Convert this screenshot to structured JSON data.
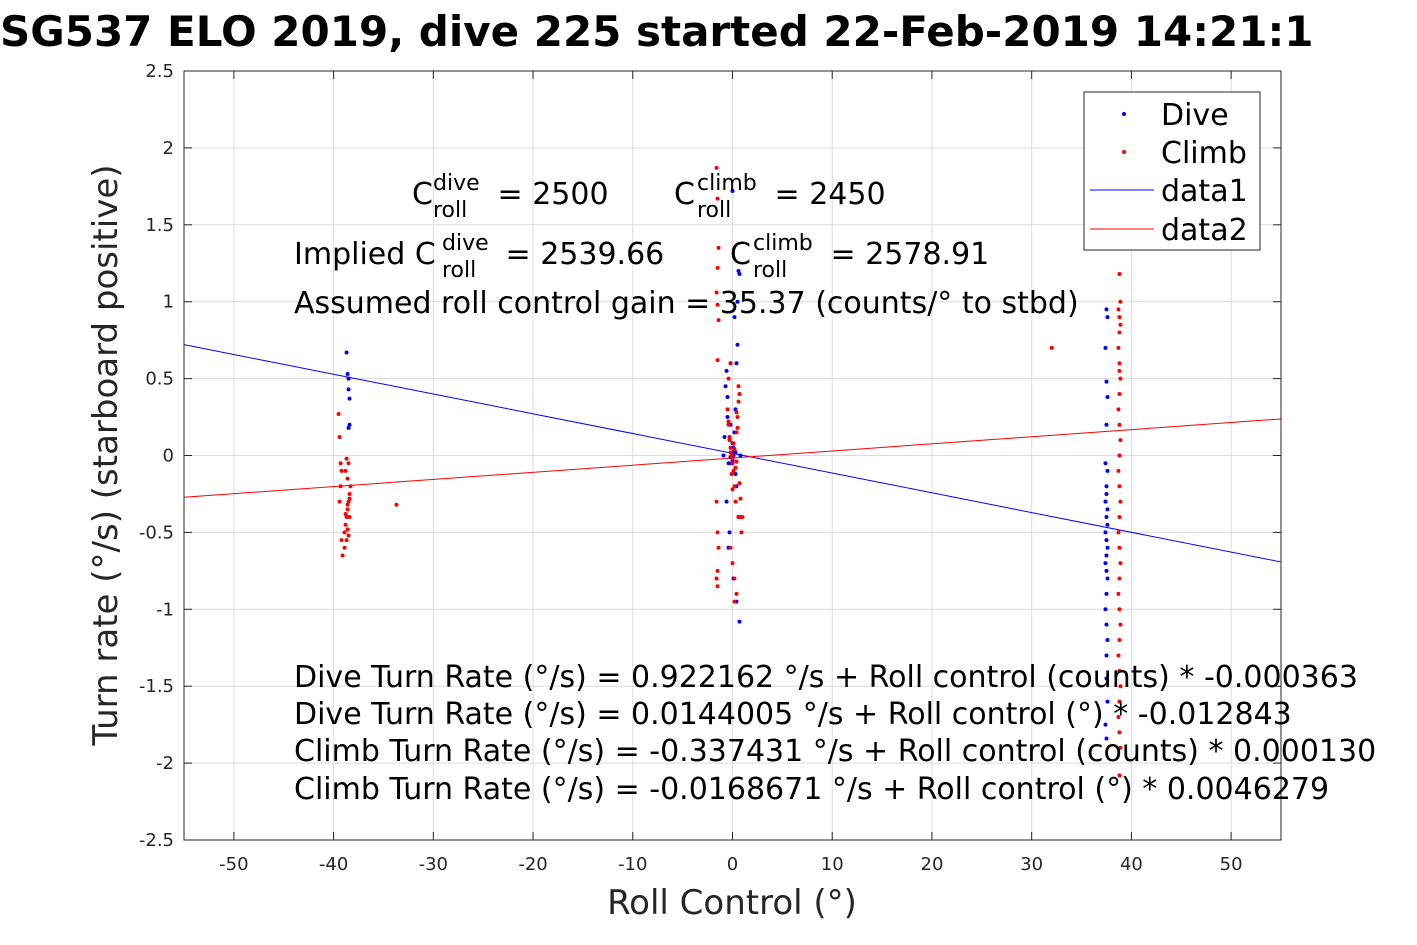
{
  "chart_data": {
    "type": "scatter",
    "title": "SG537 ELO 2019, dive 225 started 22-Feb-2019 14:21:1",
    "xlabel": "Roll Control (°)",
    "ylabel": "Turn rate (°/s) (starboard positive)",
    "xlim": [
      -55,
      55
    ],
    "ylim": [
      -2.5,
      2.5
    ],
    "x_ticks": [
      -50,
      -40,
      -30,
      -20,
      -10,
      0,
      10,
      20,
      30,
      40,
      50
    ],
    "x_tick_labels": [
      "-50",
      "-40",
      "-30",
      "-20",
      "-10",
      "0",
      "10",
      "20",
      "30",
      "40",
      "50"
    ],
    "y_ticks": [
      -2.5,
      -2,
      -1.5,
      -1,
      -0.5,
      0,
      0.5,
      1,
      1.5,
      2,
      2.5
    ],
    "y_tick_labels": [
      "-2.5",
      "-2",
      "-1.5",
      "-1",
      "-0.5",
      "0",
      "0.5",
      "1",
      "1.5",
      "2",
      "2.5"
    ],
    "grid": true,
    "legend_position": "top-right",
    "legend": [
      "Dive",
      "Climb",
      "data1",
      "data2"
    ],
    "series": [
      {
        "name": "Dive",
        "kind": "points",
        "color": "#0000ff",
        "x": [
          -38.7,
          -38.6,
          -38.5,
          -38.5,
          -38.4,
          -38.4,
          -38.5,
          -0.9,
          -0.8,
          -0.7,
          -0.6,
          -0.5,
          -0.4,
          -0.3,
          -0.2,
          -0.1,
          0.0,
          0.1,
          0.2,
          0.3,
          0.4,
          0.5,
          0.6,
          0.7,
          0.8,
          -0.6,
          -0.3,
          0.1,
          0.4,
          0.7,
          -0.5,
          0.0,
          0.3,
          0.6,
          -0.2,
          0.2,
          0.5,
          0.0,
          -0.4,
          0.4,
          0.1,
          -0.1,
          0.3,
          0.0,
          -0.2,
          0.2,
          0.0,
          0.1,
          37.5,
          37.6,
          37.4,
          37.5,
          37.6,
          37.5,
          37.4,
          37.6,
          37.5,
          37.5,
          37.4,
          37.6,
          37.5,
          37.6,
          37.4,
          37.5,
          37.6,
          37.5,
          37.4,
          37.5,
          37.6,
          37.5,
          37.4,
          37.5,
          37.6,
          37.5,
          37.5,
          37.6,
          37.4,
          37.5
        ],
        "y": [
          0.67,
          0.53,
          0.5,
          0.43,
          0.37,
          0.2,
          0.18,
          0.0,
          0.12,
          0.45,
          0.55,
          0.38,
          -0.05,
          0.1,
          0.2,
          0.02,
          -0.02,
          0.05,
          0.15,
          0.3,
          0.6,
          0.72,
          1.2,
          1.18,
          0.0,
          -0.3,
          -0.5,
          -0.8,
          -0.95,
          -1.08,
          0.25,
          0.08,
          -0.12,
          -0.4,
          0.6,
          0.9,
          1.0,
          1.72,
          -0.6,
          -0.2,
          0.05,
          -0.05,
          0.02,
          0.01,
          -0.01,
          0.03,
          -0.03,
          0.0,
          0.95,
          0.9,
          0.7,
          0.48,
          0.38,
          0.2,
          -0.05,
          -0.1,
          -0.2,
          -0.25,
          -0.3,
          -0.35,
          -0.4,
          -0.45,
          -0.5,
          -0.55,
          -0.6,
          -0.65,
          -0.7,
          -0.75,
          -0.8,
          -0.9,
          -1.0,
          -1.1,
          -1.2,
          -1.3,
          -1.45,
          -1.6,
          -1.75,
          -1.84
        ]
      },
      {
        "name": "Climb",
        "kind": "points",
        "color": "#ff0000",
        "x": [
          -39.5,
          -39.4,
          -39.3,
          -39.2,
          -39.3,
          -39.4,
          -39.2,
          -39.1,
          -38.9,
          -38.8,
          -38.7,
          -38.6,
          -38.5,
          -38.4,
          -38.3,
          -38.6,
          -38.8,
          -38.5,
          -38.7,
          -38.9,
          -38.4,
          -38.6,
          -38.5,
          -38.7,
          -38.8,
          -38.6,
          -38.4,
          -33.7,
          -1.6,
          -1.5,
          -1.4,
          -1.5,
          -1.6,
          -1.5,
          -1.4,
          -1.5,
          -1.6,
          -1.5,
          -1.4,
          -1.5,
          -1.6,
          -1.5,
          -0.5,
          -0.4,
          -0.3,
          -0.2,
          -0.1,
          0.0,
          0.1,
          0.2,
          0.3,
          0.4,
          0.5,
          0.6,
          0.7,
          0.8,
          0.9,
          -0.4,
          -0.2,
          0.0,
          0.2,
          0.4,
          0.6,
          -0.3,
          -0.1,
          0.1,
          0.3,
          0.5,
          0.7,
          -0.2,
          0.0,
          0.2,
          0.4,
          -0.4,
          0.0,
          0.4,
          0.8,
          0.2,
          -0.2,
          0.6,
          1.0,
          32.0,
          38.8,
          38.9,
          38.7,
          38.8,
          38.9,
          38.8,
          38.7,
          38.8,
          38.9,
          38.8,
          38.7,
          38.8,
          38.9,
          38.8,
          38.7,
          38.8,
          38.9,
          38.8,
          38.7,
          38.8,
          38.9,
          38.8,
          38.7,
          38.8,
          38.9,
          38.8,
          38.7,
          38.8,
          38.9,
          38.8,
          38.7,
          38.8,
          38.9,
          38.8,
          38.8
        ],
        "y": [
          0.27,
          0.12,
          -0.05,
          -0.1,
          -0.2,
          -0.3,
          -0.55,
          -0.65,
          -0.5,
          -0.45,
          -0.4,
          -0.35,
          -0.3,
          -0.25,
          -0.2,
          -0.15,
          -0.1,
          -0.05,
          -0.02,
          -0.6,
          -0.4,
          -0.48,
          -0.52,
          -0.55,
          -0.38,
          -0.32,
          -0.28,
          -0.32,
          1.87,
          1.67,
          1.35,
          1.22,
          1.06,
          0.98,
          0.88,
          0.62,
          -0.3,
          -0.5,
          -0.6,
          -0.75,
          -0.8,
          -0.85,
          0.3,
          0.2,
          0.1,
          0.05,
          0.0,
          -0.05,
          -0.1,
          -0.2,
          -0.3,
          0.15,
          0.25,
          0.35,
          0.4,
          -0.4,
          -0.5,
          0.5,
          -0.6,
          -0.7,
          -0.8,
          -0.9,
          0.45,
          0.12,
          -0.12,
          0.08,
          -0.08,
          0.18,
          -0.18,
          0.02,
          -0.02,
          0.04,
          -0.04,
          0.22,
          -0.22,
          0.28,
          -0.28,
          -0.95,
          0.6,
          -0.4,
          -0.4,
          0.7,
          1.18,
          1.0,
          0.95,
          0.9,
          0.85,
          0.8,
          0.7,
          0.6,
          0.5,
          0.4,
          0.3,
          0.2,
          0.1,
          0.0,
          -0.1,
          -0.2,
          -0.3,
          -0.4,
          -0.5,
          -0.6,
          -0.7,
          -0.8,
          -0.9,
          -1.0,
          -1.1,
          -1.2,
          -1.3,
          -1.4,
          -1.5,
          -1.6,
          -1.7,
          -1.8,
          -1.9,
          -2.08,
          0.55
        ]
      },
      {
        "name": "data1",
        "kind": "line",
        "color": "#0000ff",
        "x": [
          -55,
          55
        ],
        "y": [
          0.7207,
          -0.6921
        ]
      },
      {
        "name": "data2",
        "kind": "line",
        "color": "#ff0000",
        "x": [
          -55,
          55
        ],
        "y": [
          -0.2714,
          0.2377
        ]
      }
    ],
    "annotations": {
      "c_roll_dive": {
        "base": "C",
        "sup": "dive",
        "sub": "roll",
        "rest": " = 2500"
      },
      "c_roll_climb": {
        "base": "C",
        "sup": "climb",
        "sub": "roll",
        "rest": " = 2450"
      },
      "implied_dive": {
        "prefix": "Implied C",
        "sup": "dive",
        "sub": "roll",
        "rest": " = 2539.66"
      },
      "implied_climb": {
        "base": "C",
        "sup": "climb",
        "sub": "roll",
        "rest": " = 2578.91"
      },
      "gain": "Assumed roll control gain = 35.37 (counts/° to stbd)",
      "fits": [
        "Dive Turn Rate (°/s) = 0.922162 °/s + Roll control (counts) * -0.000363",
        "Dive Turn Rate (°/s) = 0.0144005 °/s + Roll control (°) * -0.012843",
        "Climb Turn Rate (°/s) = -0.337431 °/s + Roll control (counts) * 0.000130",
        "Climb Turn Rate (°/s) = -0.0168671 °/s + Roll control (°) * 0.0046279"
      ]
    }
  }
}
